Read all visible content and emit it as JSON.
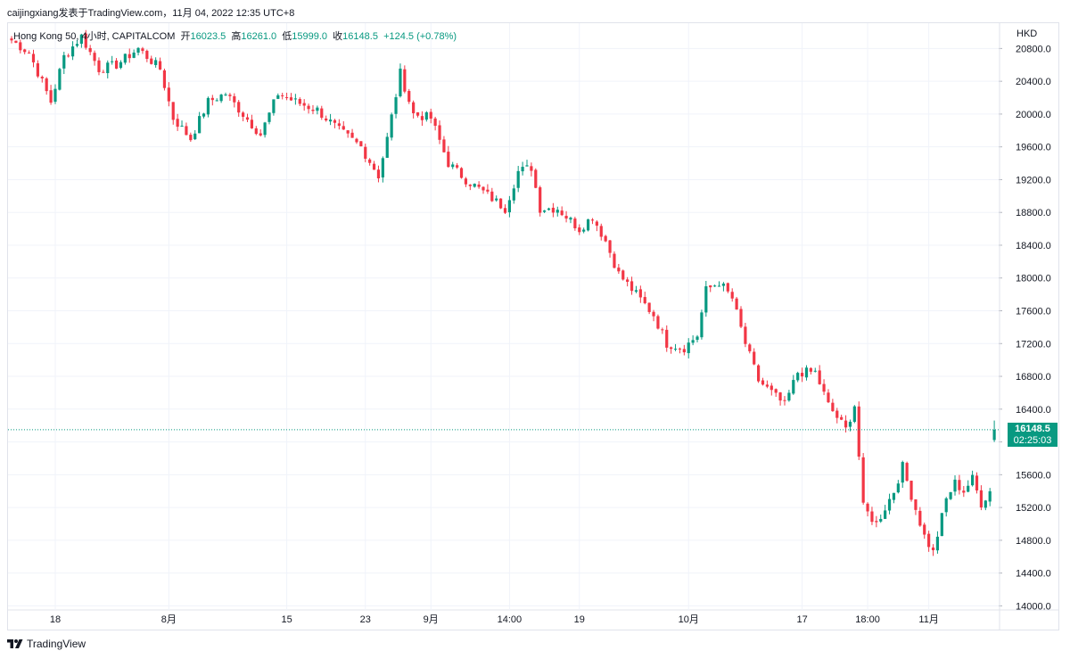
{
  "header": {
    "attribution": "caijingxiang发表于TradingView.com，11月 04, 2022 12:35 UTC+8"
  },
  "legend": {
    "symbol": "Hong Kong 50, 4小时, CAPITALCOM",
    "open_label": "开",
    "open": "16023.5",
    "high_label": "高",
    "high": "16261.0",
    "low_label": "低",
    "low": "15999.0",
    "close_label": "收",
    "close": "16148.5",
    "change": "+124.5 (+0.78%)"
  },
  "currency": "HKD",
  "last_price": {
    "price": "16148.5",
    "countdown": "02:25:03"
  },
  "footer": {
    "brand": "TradingView"
  },
  "colors": {
    "up": "#089981",
    "down": "#f23645",
    "grid": "#f0f3fa",
    "last_line": "#089981"
  },
  "chart_data": {
    "type": "candlestick",
    "y_ticks": [
      14000,
      14400,
      14800,
      15200,
      15600,
      16000,
      16400,
      16800,
      17200,
      17600,
      18000,
      18400,
      18800,
      19200,
      19600,
      20000,
      20400,
      20800
    ],
    "y_tick_labels": [
      "14000.0",
      "14400.0",
      "14800.0",
      "15200.0",
      "15600.0",
      "16000.0",
      "16400.0",
      "16800.0",
      "17200.0",
      "17600.0",
      "18000.0",
      "18400.0",
      "18800.0",
      "19200.0",
      "19600.0",
      "20000.0",
      "20400.0",
      "20800.0"
    ],
    "x_ticks": [
      "18",
      "8月",
      "15",
      "23",
      "9月",
      "14:00",
      "19",
      "10月",
      "17",
      "18:00",
      "11月"
    ],
    "x_tick_index": [
      10,
      36,
      63,
      81,
      96,
      114,
      130,
      155,
      181,
      196,
      210
    ],
    "ylim": [
      13950,
      21000
    ],
    "path": [
      {
        "i": 0,
        "p": 20900
      },
      {
        "i": 4,
        "p": 20750
      },
      {
        "i": 9,
        "p": 20150
      },
      {
        "i": 12,
        "p": 20700
      },
      {
        "i": 16,
        "p": 20950
      },
      {
        "i": 20,
        "p": 20550
      },
      {
        "i": 24,
        "p": 20600
      },
      {
        "i": 29,
        "p": 20800
      },
      {
        "i": 34,
        "p": 20550
      },
      {
        "i": 37,
        "p": 19950
      },
      {
        "i": 41,
        "p": 19700
      },
      {
        "i": 45,
        "p": 20150
      },
      {
        "i": 49,
        "p": 20250
      },
      {
        "i": 53,
        "p": 20000
      },
      {
        "i": 57,
        "p": 19750
      },
      {
        "i": 61,
        "p": 20250
      },
      {
        "i": 65,
        "p": 20150
      },
      {
        "i": 70,
        "p": 20050
      },
      {
        "i": 75,
        "p": 19800
      },
      {
        "i": 80,
        "p": 19600
      },
      {
        "i": 84,
        "p": 19250
      },
      {
        "i": 86,
        "p": 19700
      },
      {
        "i": 89,
        "p": 20500
      },
      {
        "i": 92,
        "p": 20000
      },
      {
        "i": 96,
        "p": 19950
      },
      {
        "i": 100,
        "p": 19400
      },
      {
        "i": 104,
        "p": 19200
      },
      {
        "i": 108,
        "p": 19050
      },
      {
        "i": 113,
        "p": 18850
      },
      {
        "i": 116,
        "p": 19300
      },
      {
        "i": 119,
        "p": 19350
      },
      {
        "i": 121,
        "p": 18850
      },
      {
        "i": 125,
        "p": 18850
      },
      {
        "i": 130,
        "p": 18600
      },
      {
        "i": 133,
        "p": 18750
      },
      {
        "i": 136,
        "p": 18450
      },
      {
        "i": 139,
        "p": 18050
      },
      {
        "i": 143,
        "p": 17800
      },
      {
        "i": 147,
        "p": 17550
      },
      {
        "i": 150,
        "p": 17200
      },
      {
        "i": 154,
        "p": 17150
      },
      {
        "i": 157,
        "p": 17300
      },
      {
        "i": 159,
        "p": 17850
      },
      {
        "i": 162,
        "p": 17950
      },
      {
        "i": 165,
        "p": 17750
      },
      {
        "i": 168,
        "p": 17200
      },
      {
        "i": 171,
        "p": 16750
      },
      {
        "i": 174,
        "p": 16600
      },
      {
        "i": 177,
        "p": 16450
      },
      {
        "i": 180,
        "p": 16850
      },
      {
        "i": 184,
        "p": 16850
      },
      {
        "i": 187,
        "p": 16450
      },
      {
        "i": 191,
        "p": 16150
      },
      {
        "i": 193,
        "p": 16450
      },
      {
        "i": 195,
        "p": 15200
      },
      {
        "i": 198,
        "p": 15000
      },
      {
        "i": 202,
        "p": 15400
      },
      {
        "i": 204,
        "p": 15700
      },
      {
        "i": 206,
        "p": 15350
      },
      {
        "i": 209,
        "p": 14850
      },
      {
        "i": 211,
        "p": 14650
      },
      {
        "i": 214,
        "p": 15300
      },
      {
        "i": 216,
        "p": 15500
      },
      {
        "i": 218,
        "p": 15400
      },
      {
        "i": 220,
        "p": 15550
      },
      {
        "i": 222,
        "p": 15250
      },
      {
        "i": 224,
        "p": 15400
      },
      {
        "i": 225,
        "p": 16148.5
      }
    ]
  }
}
